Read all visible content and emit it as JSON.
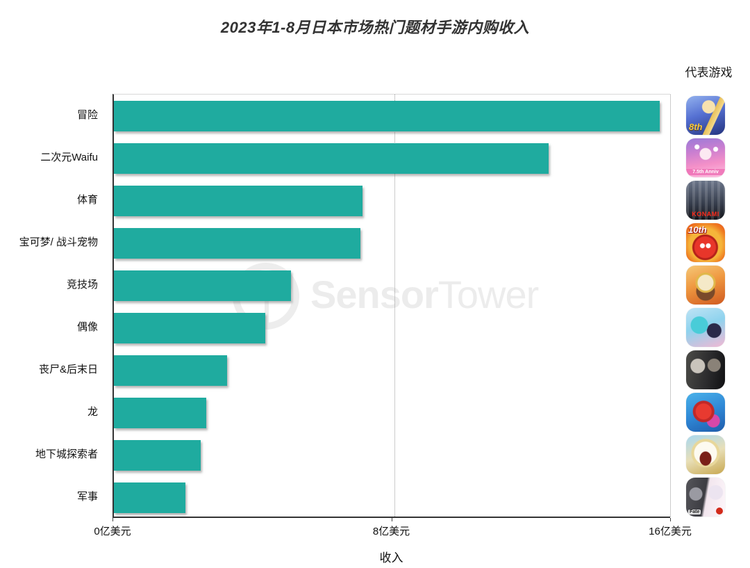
{
  "title": "2023年1-8月日本市场热门题材手游内购收入",
  "right_column_header": "代表游戏",
  "xlabel": "收入",
  "x_ticks": [
    {
      "label": "0亿美元",
      "value": 0
    },
    {
      "label": "8亿美元",
      "value": 8
    },
    {
      "label": "16亿美元",
      "value": 16
    }
  ],
  "watermark": {
    "bold": "Sensor",
    "light": "Tower"
  },
  "colors": {
    "bar": "#1fab9f",
    "axis": "#333333",
    "gridline": "#999999",
    "title_text": "#333333",
    "watermark": "#ededed"
  },
  "chart_data": {
    "type": "bar",
    "orientation": "horizontal",
    "title": "2023年1-8月日本市场热门题材手游内购收入",
    "xlabel": "收入",
    "unit": "亿美元",
    "xlim": [
      0,
      16
    ],
    "x_tick_values": [
      0,
      8,
      16
    ],
    "grid": "dotted vertical at 8 and 16",
    "categories": [
      "冒险",
      "二次元Waifu",
      "体育",
      "宝可梦/ 战斗宠物",
      "竞技场",
      "偶像",
      "丧尸&后末日",
      "龙",
      "地下城探索者",
      "军事"
    ],
    "values": [
      15.7,
      12.5,
      7.15,
      7.1,
      5.1,
      4.35,
      3.25,
      2.65,
      2.5,
      2.05
    ],
    "legend_position": "right column of representative game icons"
  },
  "games": [
    {
      "icon_name": "fate-grand-order-8th-anniversary-game-icon",
      "badge": "8th"
    },
    {
      "icon_name": "uma-musume-anniversary-game-icon",
      "badge": "7.5th Anniv"
    },
    {
      "icon_name": "pro-baseball-spirits-konami-game-icon",
      "badge": "KONAMI"
    },
    {
      "icon_name": "monster-strike-10th-game-icon",
      "badge": "10th"
    },
    {
      "icon_name": "one-piece-bounty-rush-game-icon",
      "badge": ""
    },
    {
      "icon_name": "project-sekai-miku-game-icon",
      "badge": ""
    },
    {
      "icon_name": "resident-evil-collab-game-icon",
      "badge": ""
    },
    {
      "icon_name": "puzzle-and-dragons-game-icon",
      "badge": ""
    },
    {
      "icon_name": "one-piece-gear5-game-icon",
      "badge": ""
    },
    {
      "icon_name": "military-fate-collab-game-icon",
      "badge": "Fate"
    }
  ]
}
